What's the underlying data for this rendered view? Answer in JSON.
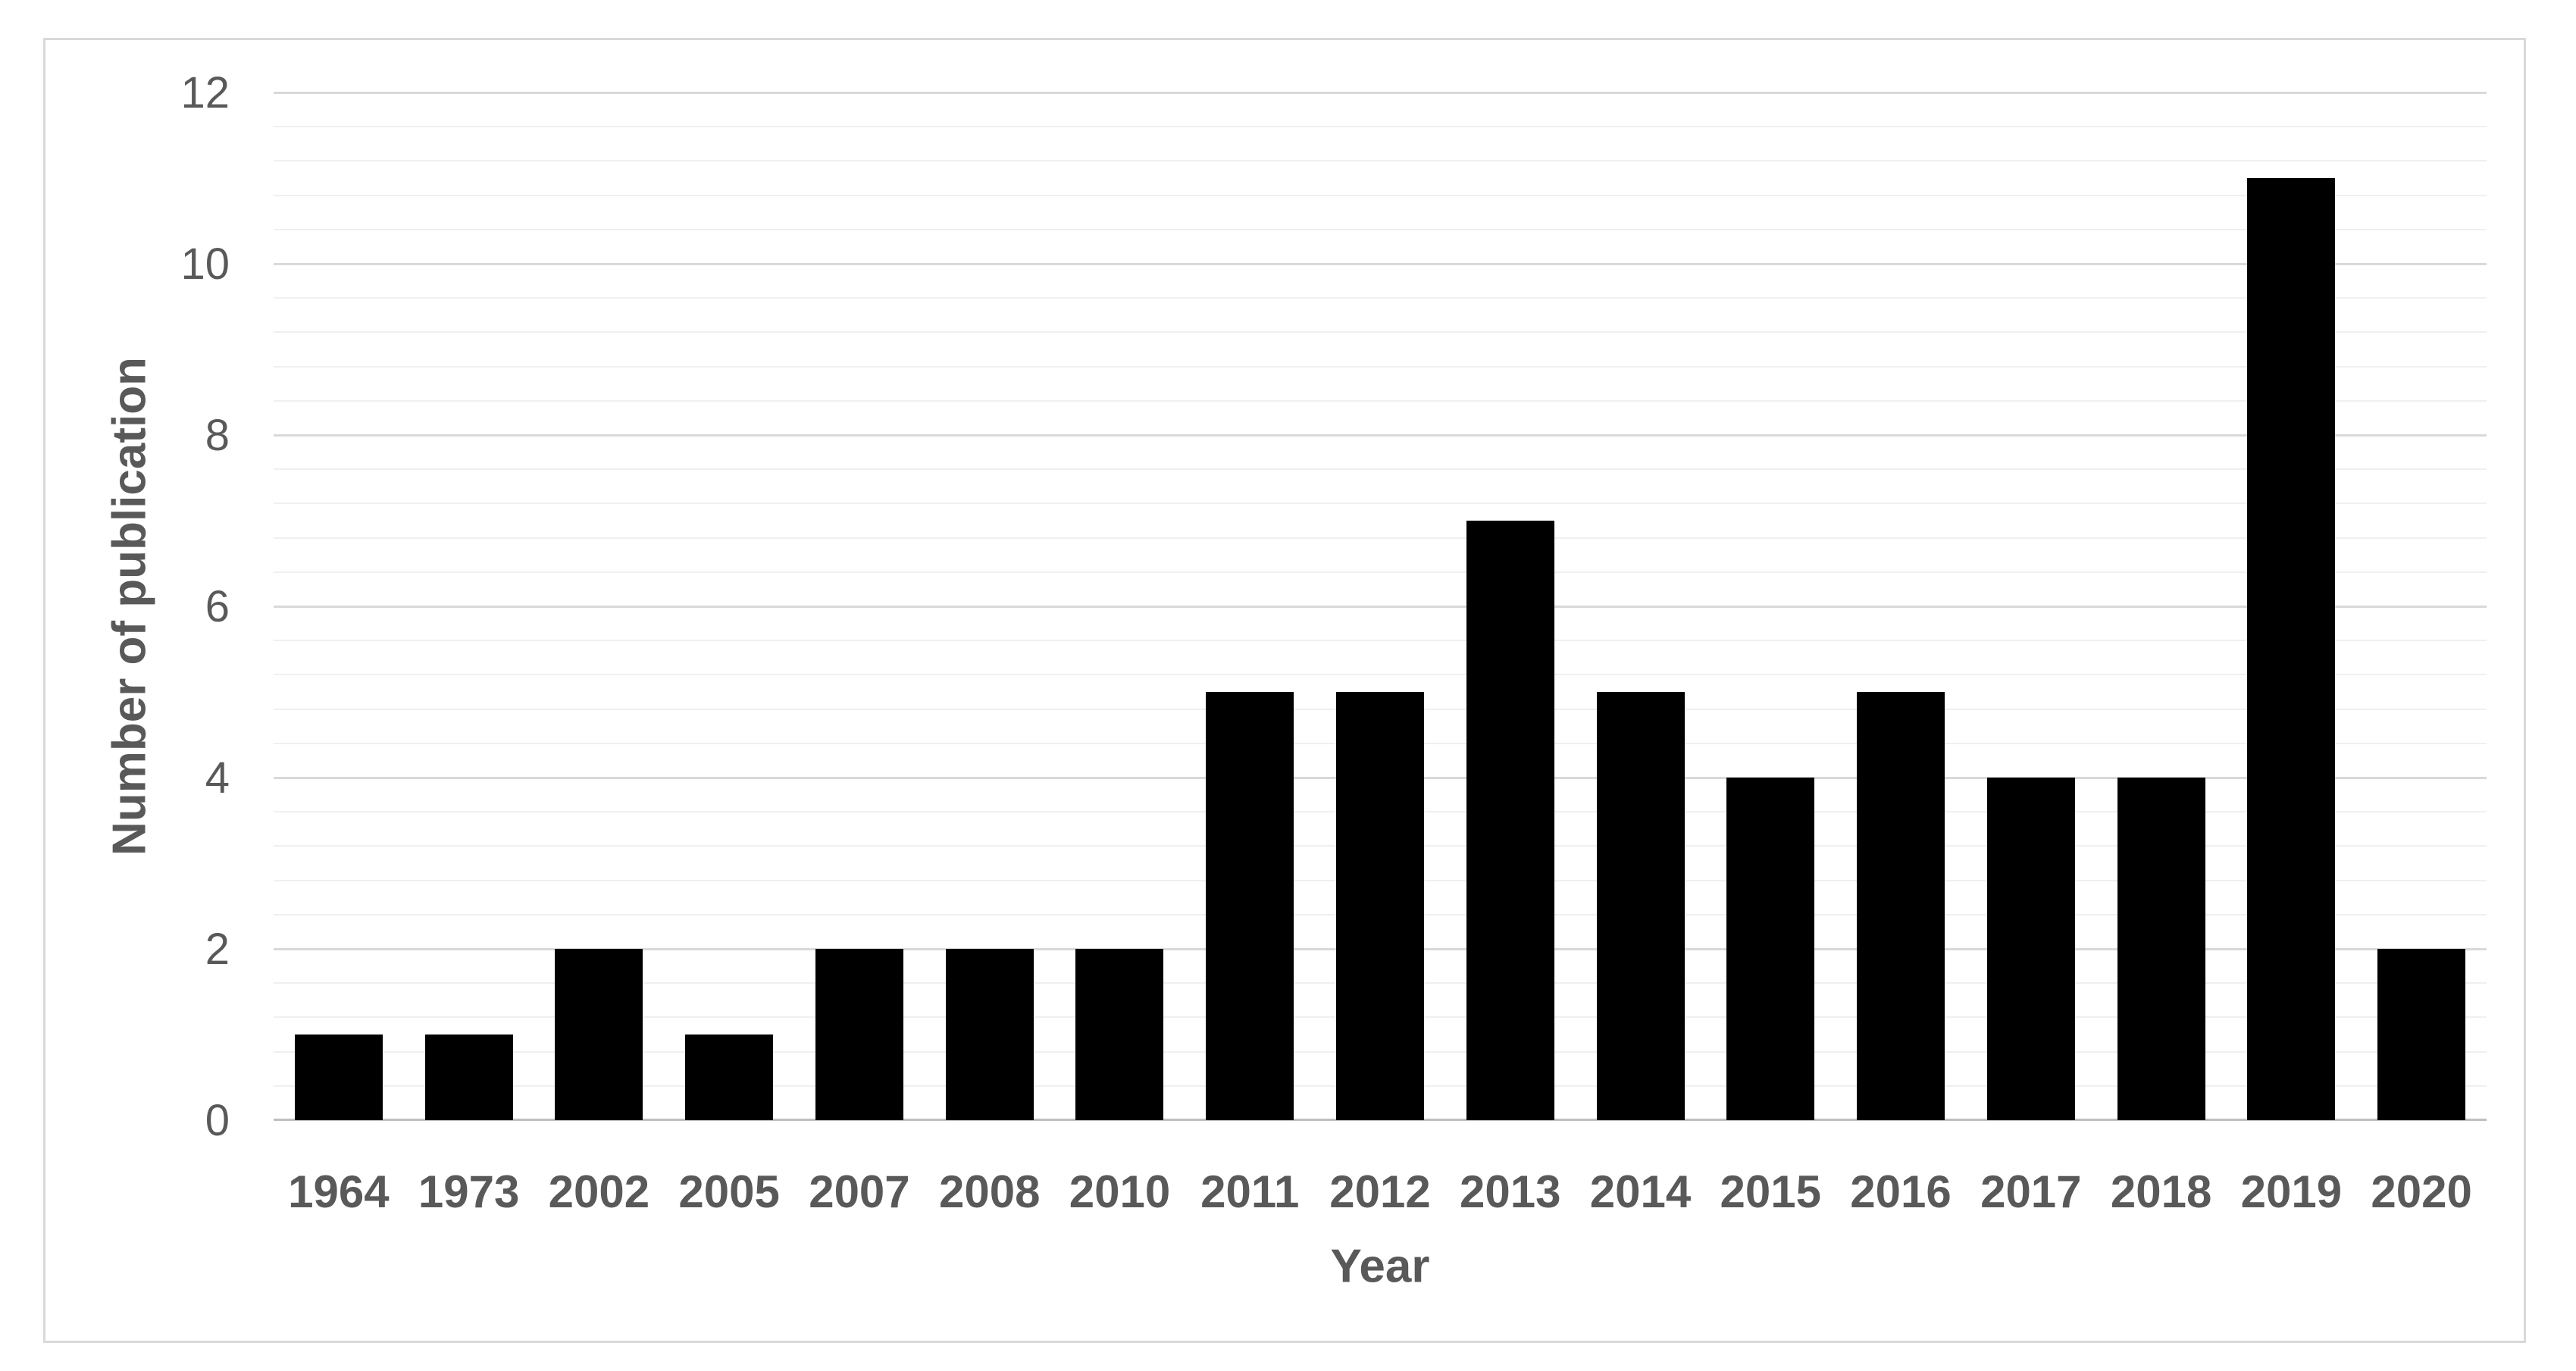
{
  "page": {
    "background": "#FFFFFF"
  },
  "chart_data": {
    "type": "bar",
    "title": "",
    "categories": [
      "1964",
      "1973",
      "2002",
      "2005",
      "2007",
      "2008",
      "2010",
      "2011",
      "2012",
      "2013",
      "2014",
      "2015",
      "2016",
      "2017",
      "2018",
      "2019",
      "2020"
    ],
    "values": [
      1,
      1,
      2,
      1,
      2,
      2,
      2,
      5,
      5,
      7,
      5,
      4,
      5,
      4,
      4,
      11,
      2
    ],
    "xlabel": "Year",
    "ylabel": "Number of publication",
    "ylim": [
      0,
      12
    ],
    "yticks": [
      0,
      2,
      4,
      6,
      8,
      10,
      12
    ],
    "minor_unit": 0.4,
    "grid": "major and minor horizontal gridlines",
    "legend": "none",
    "colors": {
      "bar": "#000000",
      "text": "#595959",
      "major_grid": "#D9D9D9",
      "minor_grid": "#F0F0F0",
      "axis_line": "#BFBFBF",
      "frame_border": "#D9D9D9",
      "background": "#FFFFFF"
    }
  }
}
